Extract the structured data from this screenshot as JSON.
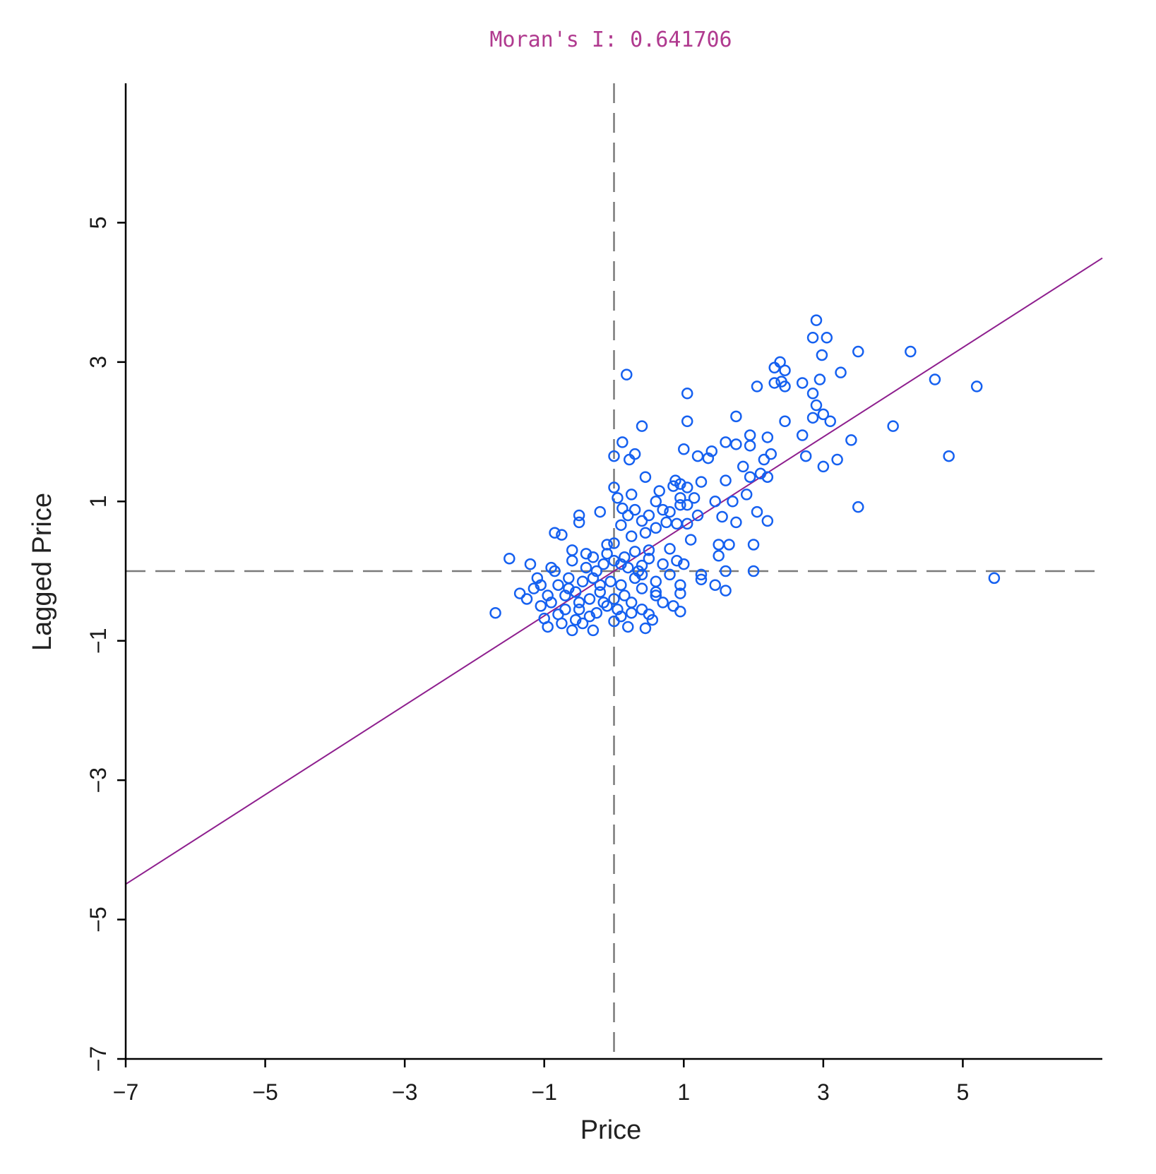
{
  "chart_data": {
    "type": "scatter",
    "title": "Moran's I: 0.641706",
    "xlabel": "Price",
    "ylabel": "Lagged Price",
    "xlim": [
      -7,
      7
    ],
    "ylim": [
      -7,
      7
    ],
    "xticks": [
      -7,
      -5,
      -3,
      -1,
      1,
      3,
      5
    ],
    "yticks": [
      -7,
      -5,
      -3,
      -1,
      1,
      3,
      5
    ],
    "xtick_labels": [
      "−7",
      "−5",
      "−3",
      "−1",
      "1",
      "3",
      "5"
    ],
    "ytick_labels": [
      "−7",
      "−5",
      "−3",
      "−1",
      "1",
      "3",
      "5"
    ],
    "reference_lines": {
      "x": 0,
      "y": 0,
      "style": "dashed"
    },
    "regression_line": {
      "slope": 0.641706,
      "intercept": 0
    },
    "grid": false,
    "colors": {
      "points": "#1560f0",
      "regression": "#8e1f8e",
      "reference": "#7a7a7a",
      "title": "#b03a8f",
      "axis": "#000000"
    },
    "points": [
      [
        2.9,
        3.6
      ],
      [
        2.85,
        3.35
      ],
      [
        3.05,
        3.35
      ],
      [
        2.98,
        3.1
      ],
      [
        3.5,
        3.15
      ],
      [
        4.25,
        3.15
      ],
      [
        2.38,
        3.0
      ],
      [
        2.3,
        2.92
      ],
      [
        2.45,
        2.88
      ],
      [
        3.25,
        2.85
      ],
      [
        0.18,
        2.82
      ],
      [
        2.95,
        2.75
      ],
      [
        4.6,
        2.75
      ],
      [
        2.3,
        2.7
      ],
      [
        2.4,
        2.72
      ],
      [
        2.7,
        2.7
      ],
      [
        2.05,
        2.65
      ],
      [
        2.45,
        2.65
      ],
      [
        5.2,
        2.65
      ],
      [
        1.05,
        2.55
      ],
      [
        2.85,
        2.55
      ],
      [
        2.9,
        2.38
      ],
      [
        1.75,
        2.22
      ],
      [
        2.85,
        2.2
      ],
      [
        3.0,
        2.25
      ],
      [
        1.05,
        2.15
      ],
      [
        2.45,
        2.15
      ],
      [
        3.1,
        2.15
      ],
      [
        0.4,
        2.08
      ],
      [
        4.0,
        2.08
      ],
      [
        2.7,
        1.95
      ],
      [
        1.95,
        1.95
      ],
      [
        2.2,
        1.92
      ],
      [
        3.4,
        1.88
      ],
      [
        1.6,
        1.85
      ],
      [
        0.12,
        1.85
      ],
      [
        1.75,
        1.82
      ],
      [
        1.95,
        1.8
      ],
      [
        1.4,
        1.72
      ],
      [
        1.0,
        1.75
      ],
      [
        2.25,
        1.68
      ],
      [
        0.3,
        1.68
      ],
      [
        0.0,
        1.65
      ],
      [
        1.2,
        1.65
      ],
      [
        1.35,
        1.62
      ],
      [
        2.15,
        1.6
      ],
      [
        0.22,
        1.6
      ],
      [
        2.75,
        1.65
      ],
      [
        3.2,
        1.6
      ],
      [
        4.8,
        1.65
      ],
      [
        1.85,
        1.5
      ],
      [
        3.0,
        1.5
      ],
      [
        0.45,
        1.35
      ],
      [
        2.1,
        1.4
      ],
      [
        0.88,
        1.3
      ],
      [
        1.95,
        1.35
      ],
      [
        0.95,
        1.25
      ],
      [
        1.6,
        1.3
      ],
      [
        1.25,
        1.28
      ],
      [
        2.2,
        1.35
      ],
      [
        0.85,
        1.22
      ],
      [
        1.05,
        1.2
      ],
      [
        0.0,
        1.2
      ],
      [
        0.65,
        1.15
      ],
      [
        1.9,
        1.1
      ],
      [
        0.25,
        1.1
      ],
      [
        0.95,
        1.05
      ],
      [
        1.15,
        1.05
      ],
      [
        0.05,
        1.05
      ],
      [
        1.45,
        1.0
      ],
      [
        1.7,
        1.0
      ],
      [
        0.6,
        1.0
      ],
      [
        0.95,
        0.95
      ],
      [
        1.05,
        0.95
      ],
      [
        0.12,
        0.9
      ],
      [
        0.7,
        0.88
      ],
      [
        3.5,
        0.92
      ],
      [
        0.3,
        0.88
      ],
      [
        -0.2,
        0.85
      ],
      [
        0.8,
        0.85
      ],
      [
        2.05,
        0.85
      ],
      [
        1.2,
        0.8
      ],
      [
        0.5,
        0.8
      ],
      [
        -0.5,
        0.8
      ],
      [
        0.2,
        0.8
      ],
      [
        1.55,
        0.78
      ],
      [
        0.4,
        0.72
      ],
      [
        -0.5,
        0.7
      ],
      [
        2.2,
        0.72
      ],
      [
        1.05,
        0.68
      ],
      [
        0.75,
        0.7
      ],
      [
        0.9,
        0.68
      ],
      [
        1.75,
        0.7
      ],
      [
        0.1,
        0.66
      ],
      [
        0.6,
        0.62
      ],
      [
        0.45,
        0.55
      ],
      [
        -0.85,
        0.55
      ],
      [
        -0.75,
        0.52
      ],
      [
        1.1,
        0.45
      ],
      [
        0.25,
        0.5
      ],
      [
        1.5,
        0.38
      ],
      [
        1.65,
        0.38
      ],
      [
        2.0,
        0.38
      ],
      [
        0.0,
        0.4
      ],
      [
        -0.1,
        0.38
      ],
      [
        0.8,
        0.32
      ],
      [
        1.5,
        0.22
      ],
      [
        -0.6,
        0.3
      ],
      [
        0.3,
        0.28
      ],
      [
        -0.3,
        0.2
      ],
      [
        0.5,
        0.18
      ],
      [
        -1.5,
        0.18
      ],
      [
        0.9,
        0.15
      ],
      [
        0.7,
        0.1
      ],
      [
        -1.2,
        0.1
      ],
      [
        1.0,
        0.1
      ],
      [
        0.4,
        0.08
      ],
      [
        -0.9,
        0.05
      ],
      [
        0.2,
        0.05
      ],
      [
        1.6,
        0.0
      ],
      [
        2.0,
        0.0
      ],
      [
        1.25,
        -0.05
      ],
      [
        0.8,
        -0.05
      ],
      [
        -0.4,
        0.05
      ],
      [
        5.45,
        -0.1
      ],
      [
        1.25,
        -0.12
      ],
      [
        0.6,
        -0.15
      ],
      [
        -1.1,
        -0.1
      ],
      [
        0.95,
        -0.2
      ],
      [
        1.45,
        -0.2
      ],
      [
        0.4,
        -0.25
      ],
      [
        -0.2,
        -0.2
      ],
      [
        1.6,
        -0.28
      ],
      [
        0.95,
        -0.32
      ],
      [
        -1.35,
        -0.32
      ],
      [
        0.6,
        -0.35
      ],
      [
        -0.7,
        -0.35
      ],
      [
        0.0,
        -0.4
      ],
      [
        -1.25,
        -0.4
      ],
      [
        0.25,
        -0.45
      ],
      [
        -0.5,
        -0.45
      ],
      [
        0.85,
        -0.5
      ],
      [
        -0.1,
        -0.5
      ],
      [
        -1.05,
        -0.5
      ],
      [
        0.4,
        -0.55
      ],
      [
        0.95,
        -0.58
      ],
      [
        -1.7,
        -0.6
      ],
      [
        0.5,
        -0.62
      ],
      [
        -0.8,
        -0.62
      ],
      [
        0.1,
        -0.65
      ],
      [
        -0.35,
        -0.65
      ],
      [
        -1.0,
        -0.68
      ],
      [
        0.55,
        -0.7
      ],
      [
        -0.55,
        -0.7
      ],
      [
        0.0,
        -0.72
      ],
      [
        -0.75,
        -0.75
      ],
      [
        0.2,
        -0.8
      ],
      [
        -0.95,
        -0.8
      ],
      [
        0.45,
        -0.82
      ],
      [
        -0.3,
        -0.85
      ],
      [
        -0.6,
        -0.85
      ],
      [
        0.1,
        -0.2
      ],
      [
        -0.2,
        -0.3
      ],
      [
        -0.45,
        -0.15
      ],
      [
        0.15,
        -0.35
      ],
      [
        -0.65,
        -0.1
      ],
      [
        -0.15,
        0.1
      ],
      [
        0.3,
        -0.1
      ],
      [
        -0.8,
        -0.2
      ],
      [
        -0.35,
        -0.4
      ],
      [
        0.05,
        -0.55
      ],
      [
        -0.55,
        -0.3
      ],
      [
        -0.25,
        -0.6
      ],
      [
        0.35,
        0.0
      ],
      [
        -0.9,
        -0.45
      ],
      [
        -0.4,
        0.25
      ],
      [
        0.15,
        0.2
      ],
      [
        -0.6,
        0.15
      ],
      [
        -0.05,
        -0.15
      ],
      [
        -0.7,
        -0.55
      ],
      [
        -0.1,
        0.25
      ],
      [
        0.6,
        -0.3
      ],
      [
        -0.3,
        -0.1
      ],
      [
        0.1,
        0.1
      ],
      [
        -1.05,
        -0.2
      ],
      [
        -0.85,
        0.0
      ],
      [
        0.5,
        0.3
      ],
      [
        -0.15,
        -0.45
      ],
      [
        0.25,
        -0.6
      ],
      [
        -0.5,
        -0.55
      ],
      [
        -0.95,
        -0.35
      ],
      [
        0.7,
        -0.45
      ],
      [
        -0.25,
        0.0
      ],
      [
        0.0,
        0.15
      ],
      [
        -0.65,
        -0.25
      ],
      [
        -0.45,
        -0.75
      ],
      [
        0.4,
        -0.05
      ],
      [
        -1.15,
        -0.25
      ]
    ]
  }
}
